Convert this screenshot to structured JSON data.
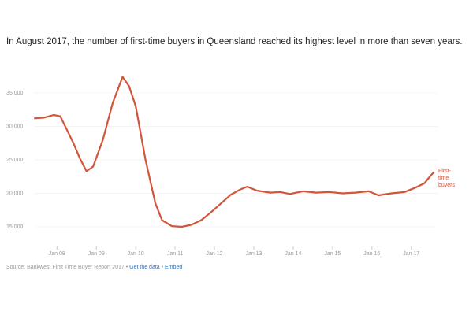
{
  "chart_data": {
    "type": "line",
    "title": "In August 2017, the number of first-time buyers in Queensland reached its highest level in more than seven years.",
    "x": [
      "2007-06",
      "2007-09",
      "2007-12",
      "2008-02",
      "2008-04",
      "2008-06",
      "2008-08",
      "2008-10",
      "2008-12",
      "2009-03",
      "2009-06",
      "2009-09",
      "2009-11",
      "2010-01",
      "2010-04",
      "2010-07",
      "2010-09",
      "2010-12",
      "2011-03",
      "2011-06",
      "2011-09",
      "2011-12",
      "2012-03",
      "2012-06",
      "2012-09",
      "2012-11",
      "2013-02",
      "2013-06",
      "2013-09",
      "2013-12",
      "2014-04",
      "2014-08",
      "2014-12",
      "2015-04",
      "2015-08",
      "2015-12",
      "2016-03",
      "2016-07",
      "2016-11",
      "2017-02",
      "2017-05",
      "2017-07",
      "2017-08"
    ],
    "series": [
      {
        "name": "First-time buyers",
        "color": "#d2553b",
        "values": [
          31200,
          31300,
          31700,
          31500,
          29500,
          27500,
          25200,
          23300,
          24000,
          28000,
          33500,
          37400,
          36000,
          33000,
          25000,
          18500,
          16000,
          15100,
          15000,
          15300,
          16000,
          17200,
          18500,
          19800,
          20600,
          21000,
          20400,
          20100,
          20200,
          19900,
          20300,
          20100,
          20200,
          20000,
          20100,
          20300,
          19700,
          20000,
          20200,
          20800,
          21500,
          22700,
          23200
        ]
      }
    ],
    "xlim": [
      "2007-05",
      "2017-09"
    ],
    "xticks": [
      {
        "value": "2008-01",
        "label": "Jan 08"
      },
      {
        "value": "2009-01",
        "label": "Jan 09"
      },
      {
        "value": "2010-01",
        "label": "Jan 10"
      },
      {
        "value": "2011-01",
        "label": "Jan 11"
      },
      {
        "value": "2012-01",
        "label": "Jan 12"
      },
      {
        "value": "2013-01",
        "label": "Jan 13"
      },
      {
        "value": "2014-01",
        "label": "Jan 14"
      },
      {
        "value": "2015-01",
        "label": "Jan 15"
      },
      {
        "value": "2016-01",
        "label": "Jan 16"
      },
      {
        "value": "2017-01",
        "label": "Jan 17"
      }
    ],
    "ylim": [
      13000,
      37700
    ],
    "yticks": [
      {
        "value": 15000,
        "label": "15,000"
      },
      {
        "value": 20000,
        "label": "20,000"
      },
      {
        "value": 25000,
        "label": "25,000"
      },
      {
        "value": 30000,
        "label": "30,000"
      },
      {
        "value": 35000,
        "label": "35,000"
      }
    ],
    "grid": true,
    "source": "Source: Bankwest First Time Buyer Report 2017",
    "separator": "•",
    "links": [
      "Get the data",
      "Embed"
    ]
  }
}
